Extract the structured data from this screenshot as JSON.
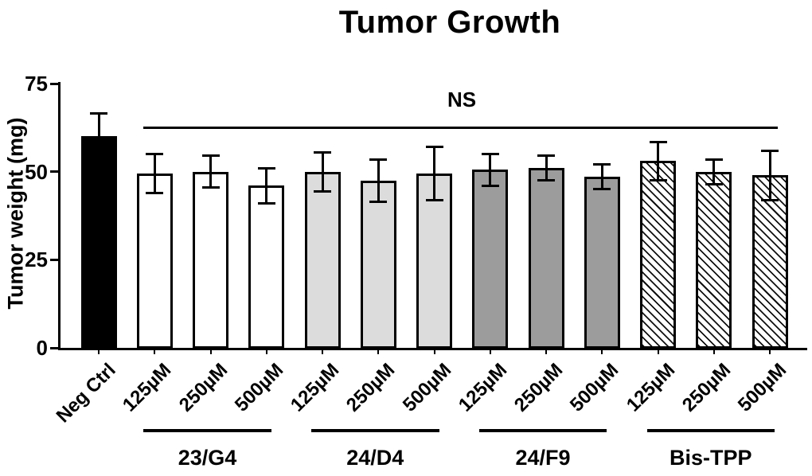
{
  "title": "Tumor Growth",
  "chart_data": {
    "type": "bar",
    "title": "Tumor Growth",
    "xlabel": "",
    "ylabel": "Tumor weight (mg)",
    "ylim": [
      0,
      75
    ],
    "yticks": [
      0,
      25,
      50,
      75
    ],
    "grid": false,
    "annotation": {
      "label": "NS",
      "description": "horizontal significance line spanning all treatment bars"
    },
    "bars": [
      {
        "label": "Neg Ctrl",
        "group": "control",
        "value": 60,
        "error": 6.5,
        "fill": "black"
      },
      {
        "label": "125µM",
        "group": "23/G4",
        "value": 49.5,
        "error": 5.5,
        "fill": "white"
      },
      {
        "label": "250µM",
        "group": "23/G4",
        "value": 50,
        "error": 4.5,
        "fill": "white"
      },
      {
        "label": "500µM",
        "group": "23/G4",
        "value": 46,
        "error": 5,
        "fill": "white"
      },
      {
        "label": "125µM",
        "group": "24/D4",
        "value": 50,
        "error": 5.5,
        "fill": "lightgray"
      },
      {
        "label": "250µM",
        "group": "24/D4",
        "value": 47.5,
        "error": 6,
        "fill": "lightgray"
      },
      {
        "label": "500µM",
        "group": "24/D4",
        "value": 49.5,
        "error": 7.5,
        "fill": "lightgray"
      },
      {
        "label": "125µM",
        "group": "24/F9",
        "value": 50.5,
        "error": 4.5,
        "fill": "gray"
      },
      {
        "label": "250µM",
        "group": "24/F9",
        "value": 51,
        "error": 3.5,
        "fill": "gray"
      },
      {
        "label": "500µM",
        "group": "24/F9",
        "value": 48.5,
        "error": 3.5,
        "fill": "gray"
      },
      {
        "label": "125µM",
        "group": "Bis-TPP",
        "value": 53,
        "error": 5.5,
        "fill": "hatch"
      },
      {
        "label": "250µM",
        "group": "Bis-TPP",
        "value": 50,
        "error": 3.5,
        "fill": "hatch"
      },
      {
        "label": "500µM",
        "group": "Bis-TPP",
        "value": 49,
        "error": 7,
        "fill": "hatch"
      }
    ],
    "groups": [
      {
        "label": "23/G4",
        "fill": "white",
        "bar_indices": [
          1,
          3
        ]
      },
      {
        "label": "24/D4",
        "fill": "lightgray",
        "bar_indices": [
          4,
          6
        ]
      },
      {
        "label": "24/F9",
        "fill": "gray",
        "bar_indices": [
          7,
          9
        ]
      },
      {
        "label": "Bis-TPP",
        "fill": "hatch",
        "bar_indices": [
          10,
          12
        ]
      }
    ],
    "colors": {
      "bar_black": "#000000",
      "bar_white": "#ffffff",
      "bar_lightgray": "#dcdcdc",
      "bar_gray": "#9c9c9c",
      "hatch_line": "#111111",
      "axis": "#000000"
    },
    "legend": "none"
  }
}
